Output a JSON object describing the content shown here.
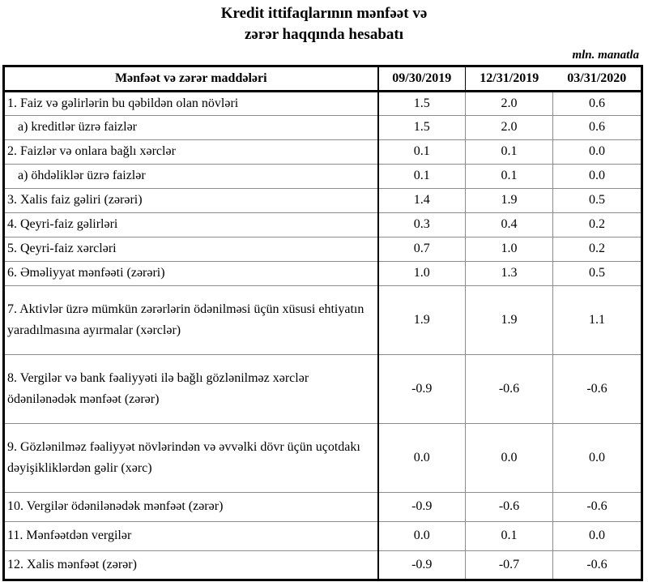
{
  "title": {
    "line1": "Kredit ittifaqlarının mənfəət və",
    "line2": "zərər haqqında hesabatı"
  },
  "unit_note": "mln. manatla",
  "colors": {
    "border_strong": "#000000",
    "border_thin": "#8c8c8c",
    "background": "#ffffff",
    "text": "#000000"
  },
  "table": {
    "header": {
      "items_label": "Mənfəət və zərər maddələri",
      "periods": [
        "09/30/2019",
        "12/31/2019",
        "03/31/2020"
      ]
    },
    "rows": [
      {
        "label": "1. Faiz və gəlirlərin bu qəbildən olan növləri",
        "values": [
          "1.5",
          "2.0",
          "0.6"
        ]
      },
      {
        "label": "a) kreditlər üzrə faizlər",
        "values": [
          "1.5",
          "2.0",
          "0.6"
        ]
      },
      {
        "label": "2. Faizlər və onlara bağlı xərclər",
        "values": [
          "0.1",
          "0.1",
          "0.0"
        ]
      },
      {
        "label": "a) öhdəliklər üzrə faizlər",
        "values": [
          "0.1",
          "0.1",
          "0.0"
        ]
      },
      {
        "label": "3. Xalis faiz gəliri (zərəri)",
        "values": [
          "1.4",
          "1.9",
          "0.5"
        ]
      },
      {
        "label": "4. Qeyri-faiz gəlirləri",
        "values": [
          "0.3",
          "0.4",
          "0.2"
        ]
      },
      {
        "label": "5. Qeyri-faiz xərcləri",
        "values": [
          "0.7",
          "1.0",
          "0.2"
        ]
      },
      {
        "label": "6. Əməliyyat mənfəəti (zərəri)",
        "values": [
          "1.0",
          "1.3",
          "0.5"
        ]
      },
      {
        "label": "7. Aktivlər üzrə mümkün zərərlərin ödənilməsi üçün xüsusi ehtiyatın yaradılmasına ayırmalar (xərclər)",
        "values": [
          "1.9",
          "1.9",
          "1.1"
        ]
      },
      {
        "label": "8. Vergilər və bank fəaliyyəti ilə bağlı gözlənilməz xərclər ödənilənədək mənfəət (zərər)",
        "values": [
          "-0.9",
          "-0.6",
          "-0.6"
        ]
      },
      {
        "label": "9. Gözlənilməz fəaliyyət növlərindən və əvvəlki dövr üçün uçotdakı dəyişikliklərdən gəlir (xərc)",
        "values": [
          "0.0",
          "0.0",
          "0.0"
        ]
      },
      {
        "label": "10. Vergilər ödənilənədək mənfəət (zərər)",
        "values": [
          "-0.9",
          "-0.6",
          "-0.6"
        ]
      },
      {
        "label": "11. Mənfəətdən vergilər",
        "values": [
          "0.0",
          "0.1",
          "0.0"
        ]
      },
      {
        "label": "12. Xalis mənfəət (zərər)",
        "values": [
          "-0.9",
          "-0.7",
          "-0.6"
        ]
      }
    ]
  }
}
